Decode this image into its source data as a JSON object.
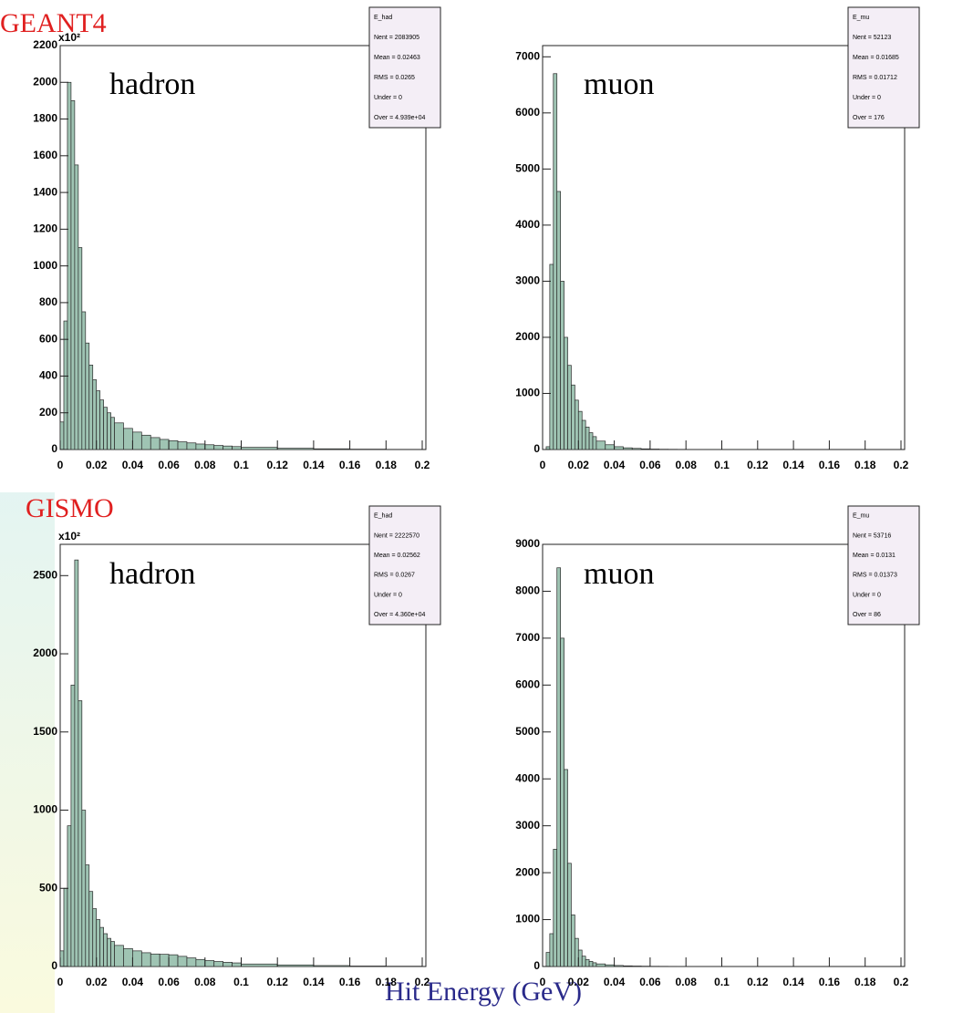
{
  "labels": {
    "top_group": "GEANT4",
    "bottom_group": "GISMO",
    "xlabel": "Hit Energy (GeV)"
  },
  "chart_data": [
    {
      "type": "histogram",
      "title": "hadron",
      "y_multiplier": "x10²",
      "color": "#9fc4b3",
      "stats": [
        "E_had",
        "Nent = 2083905",
        "Mean = 0.02463",
        "RMS = 0.0265",
        "Under = 0",
        "Over = 4.939e+04"
      ],
      "bins": [
        0,
        0.002,
        0.004,
        0.006,
        0.008,
        0.01,
        0.012,
        0.014,
        0.016,
        0.018,
        0.02,
        0.022,
        0.024,
        0.026,
        0.028,
        0.03,
        0.035,
        0.04,
        0.045,
        0.05,
        0.055,
        0.06,
        0.065,
        0.07,
        0.075,
        0.08,
        0.085,
        0.09,
        0.095,
        0.1,
        0.12,
        0.14,
        0.16,
        0.18,
        0.2
      ],
      "values": [
        150,
        700,
        2000,
        1900,
        1550,
        1100,
        750,
        580,
        460,
        380,
        320,
        270,
        230,
        200,
        175,
        145,
        115,
        95,
        78,
        65,
        55,
        48,
        42,
        36,
        30,
        26,
        22,
        19,
        16,
        12,
        7,
        4,
        2,
        1
      ],
      "xlim": [
        0,
        0.2
      ],
      "xticks": [
        0,
        0.02,
        0.04,
        0.06,
        0.08,
        0.1,
        0.12,
        0.14,
        0.16,
        0.18,
        0.2
      ],
      "ylim": [
        0,
        2200
      ],
      "yticks": [
        0,
        200,
        400,
        600,
        800,
        1000,
        1200,
        1400,
        1600,
        1800,
        2000,
        2200
      ]
    },
    {
      "type": "histogram",
      "title": "muon",
      "color": "#9fc4b3",
      "stats": [
        "E_mu",
        "Nent = 52123",
        "Mean = 0.01685",
        "RMS = 0.01712",
        "Under = 0",
        "Over = 176"
      ],
      "bins": [
        0,
        0.002,
        0.004,
        0.006,
        0.008,
        0.01,
        0.012,
        0.014,
        0.016,
        0.018,
        0.02,
        0.022,
        0.024,
        0.026,
        0.028,
        0.03,
        0.035,
        0.04,
        0.045,
        0.05,
        0.055,
        0.06,
        0.065,
        0.07,
        0.075,
        0.08,
        0.085,
        0.09,
        0.095,
        0.1,
        0.12,
        0.14,
        0.16,
        0.18,
        0.2
      ],
      "values": [
        0,
        50,
        3300,
        6700,
        4600,
        3000,
        2000,
        1500,
        1150,
        880,
        680,
        520,
        400,
        300,
        230,
        150,
        85,
        50,
        30,
        20,
        12,
        8,
        5,
        4,
        3,
        2,
        2,
        1,
        1,
        1,
        0,
        0,
        0,
        0
      ],
      "xlim": [
        0,
        0.2
      ],
      "xticks": [
        0,
        0.02,
        0.04,
        0.06,
        0.08,
        0.1,
        0.12,
        0.14,
        0.16,
        0.18,
        0.2
      ],
      "ylim": [
        0,
        7200
      ],
      "yticks": [
        0,
        1000,
        2000,
        3000,
        4000,
        5000,
        6000,
        7000
      ]
    },
    {
      "type": "histogram",
      "title": "hadron",
      "y_multiplier": "x10²",
      "color": "#9fc4b3",
      "stats": [
        "E_had",
        "Nent = 2222570",
        "Mean = 0.02562",
        "RMS = 0.0267",
        "Under = 0",
        "Over = 4.360e+04"
      ],
      "bins": [
        0,
        0.002,
        0.004,
        0.006,
        0.008,
        0.01,
        0.012,
        0.014,
        0.016,
        0.018,
        0.02,
        0.022,
        0.024,
        0.026,
        0.028,
        0.03,
        0.035,
        0.04,
        0.045,
        0.05,
        0.055,
        0.06,
        0.065,
        0.07,
        0.075,
        0.08,
        0.085,
        0.09,
        0.095,
        0.1,
        0.12,
        0.14,
        0.16,
        0.18,
        0.2
      ],
      "values": [
        100,
        500,
        900,
        1800,
        2600,
        1700,
        1000,
        650,
        480,
        370,
        300,
        250,
        210,
        180,
        160,
        135,
        115,
        100,
        88,
        80,
        78,
        75,
        65,
        55,
        45,
        38,
        32,
        27,
        23,
        16,
        10,
        6,
        3,
        2
      ],
      "xlim": [
        0,
        0.2
      ],
      "xticks": [
        0,
        0.02,
        0.04,
        0.06,
        0.08,
        0.1,
        0.12,
        0.14,
        0.16,
        0.18,
        0.2
      ],
      "ylim": [
        0,
        2700
      ],
      "yticks": [
        0,
        500,
        1000,
        1500,
        2000,
        2500
      ]
    },
    {
      "type": "histogram",
      "title": "muon",
      "color": "#9fc4b3",
      "stats": [
        "E_mu",
        "Nent = 53716",
        "Mean = 0.0131",
        "RMS = 0.01373",
        "Under = 0",
        "Over = 86"
      ],
      "bins": [
        0,
        0.002,
        0.004,
        0.006,
        0.008,
        0.01,
        0.012,
        0.014,
        0.016,
        0.018,
        0.02,
        0.022,
        0.024,
        0.026,
        0.028,
        0.03,
        0.035,
        0.04,
        0.045,
        0.05,
        0.055,
        0.06,
        0.065,
        0.07,
        0.075,
        0.08,
        0.085,
        0.09,
        0.095,
        0.1,
        0.12,
        0.14,
        0.16,
        0.18,
        0.2
      ],
      "values": [
        0,
        300,
        700,
        2500,
        8500,
        7000,
        4200,
        2200,
        1100,
        600,
        350,
        220,
        150,
        110,
        80,
        55,
        35,
        22,
        14,
        10,
        7,
        5,
        4,
        3,
        2,
        2,
        1,
        1,
        1,
        1,
        0,
        0,
        0,
        0
      ],
      "xlim": [
        0,
        0.2
      ],
      "xticks": [
        0,
        0.02,
        0.04,
        0.06,
        0.08,
        0.1,
        0.12,
        0.14,
        0.16,
        0.18,
        0.2
      ],
      "ylim": [
        0,
        9000
      ],
      "yticks": [
        0,
        1000,
        2000,
        3000,
        4000,
        5000,
        6000,
        7000,
        8000,
        9000
      ]
    }
  ]
}
